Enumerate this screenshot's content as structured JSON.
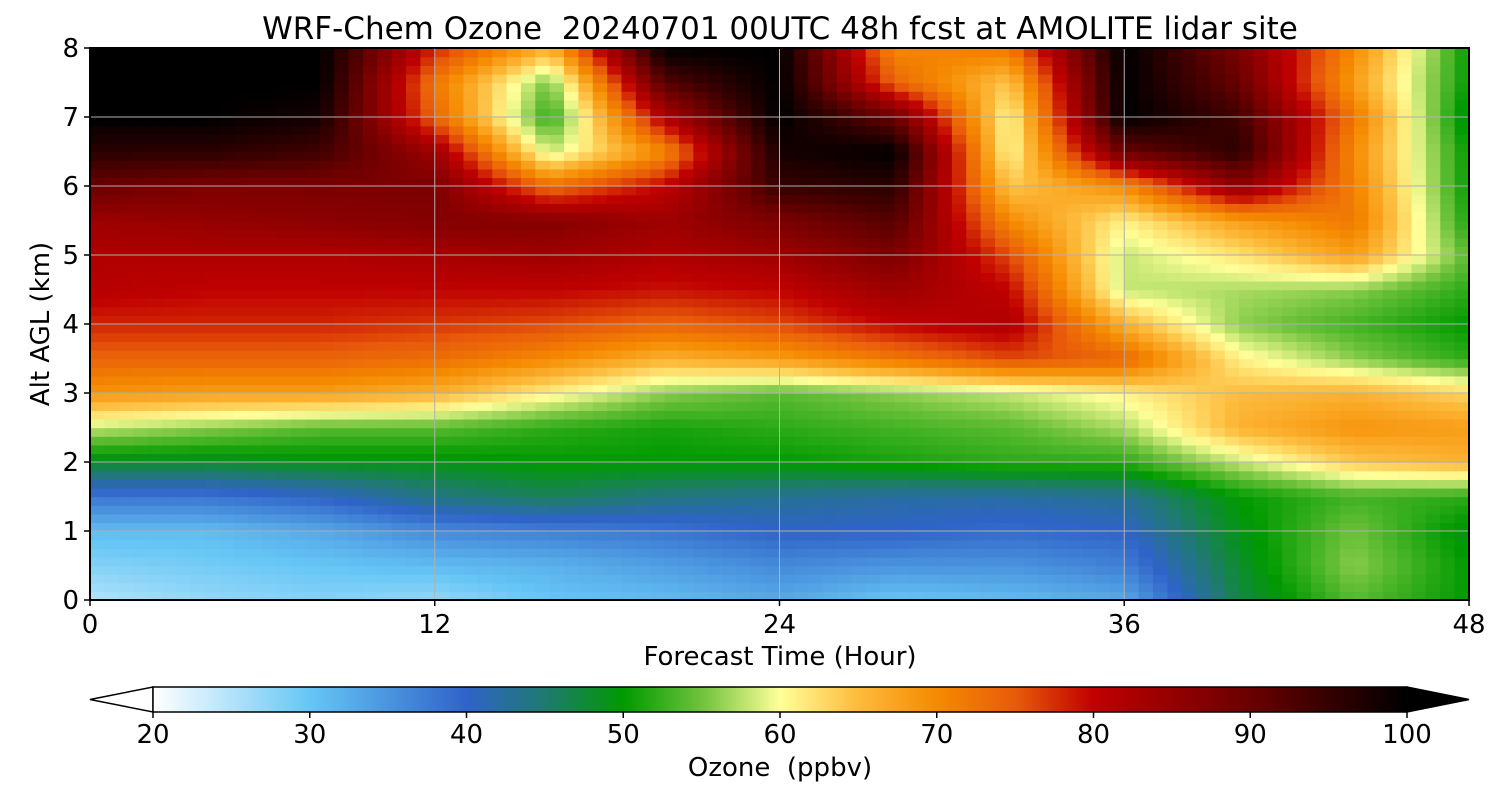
{
  "chart_data": {
    "type": "heatmap",
    "title": "WRF-Chem Ozone  20240701 00UTC 48h fcst at AMOLITE lidar site",
    "xlabel": "Forecast Time (Hour)",
    "ylabel": "Alt AGL (km)",
    "xlim": [
      0,
      48
    ],
    "ylim": [
      0,
      8
    ],
    "xticks": [
      0,
      12,
      24,
      36,
      48
    ],
    "yticks": [
      0,
      1,
      2,
      3,
      4,
      5,
      6,
      7,
      8
    ],
    "grid": true,
    "colorbar": {
      "label": "Ozone  (ppbv)",
      "range": [
        20,
        100
      ],
      "ticks": [
        20,
        30,
        40,
        50,
        60,
        70,
        80,
        90,
        100
      ],
      "extend": "both",
      "stops": [
        {
          "value": 20,
          "color": "#ffffff"
        },
        {
          "value": 30,
          "color": "#66c6f5"
        },
        {
          "value": 40,
          "color": "#2f63c8"
        },
        {
          "value": 45,
          "color": "#1f7a70"
        },
        {
          "value": 50,
          "color": "#009a00"
        },
        {
          "value": 55,
          "color": "#6fc23c"
        },
        {
          "value": 60,
          "color": "#ffff99"
        },
        {
          "value": 65,
          "color": "#fdbb3c"
        },
        {
          "value": 70,
          "color": "#f58a00"
        },
        {
          "value": 75,
          "color": "#e85b0a"
        },
        {
          "value": 80,
          "color": "#c00000"
        },
        {
          "value": 90,
          "color": "#6a0000"
        },
        {
          "value": 100,
          "color": "#000000"
        }
      ]
    },
    "x": [
      0,
      4,
      8,
      12,
      16,
      20,
      24,
      28,
      32,
      36,
      40,
      44,
      48
    ],
    "y": [
      0,
      0.5,
      1,
      1.5,
      2,
      2.5,
      3,
      3.5,
      4,
      4.5,
      5,
      5.5,
      6,
      6.5,
      7,
      7.5,
      8
    ],
    "z": [
      [
        25,
        27,
        28,
        27,
        30,
        31,
        33,
        30,
        31,
        33,
        47,
        54,
        50
      ],
      [
        28,
        29,
        30,
        31,
        32,
        34,
        36,
        35,
        35,
        37,
        48,
        56,
        50
      ],
      [
        31,
        31,
        33,
        36,
        37,
        38,
        40,
        40,
        39,
        40,
        49,
        55,
        49
      ],
      [
        38,
        38,
        40,
        44,
        46,
        44,
        43,
        42,
        42,
        43,
        50,
        53,
        52
      ],
      [
        48,
        48,
        49,
        49,
        50,
        50,
        50,
        51,
        52,
        52,
        58,
        64,
        66
      ],
      [
        58,
        56,
        54,
        54,
        52,
        51,
        52,
        53,
        54,
        57,
        66,
        69,
        68
      ],
      [
        69,
        68,
        68,
        66,
        61,
        56,
        54,
        56,
        58,
        61,
        65,
        66,
        63
      ],
      [
        74,
        74,
        74,
        73,
        70,
        66,
        68,
        72,
        76,
        74,
        61,
        56,
        52
      ],
      [
        78,
        78,
        78,
        77,
        76,
        74,
        76,
        80,
        82,
        66,
        56,
        53,
        50
      ],
      [
        81,
        80,
        80,
        80,
        80,
        79,
        80,
        84,
        80,
        58,
        57,
        56,
        52
      ],
      [
        82,
        82,
        82,
        83,
        84,
        82,
        84,
        88,
        76,
        58,
        62,
        68,
        54
      ],
      [
        84,
        85,
        86,
        87,
        87,
        84,
        88,
        92,
        70,
        61,
        68,
        72,
        51
      ],
      [
        90,
        88,
        88,
        88,
        73,
        80,
        95,
        96,
        64,
        70,
        86,
        71,
        50
      ],
      [
        96,
        96,
        94,
        84,
        58,
        70,
        98,
        100,
        60,
        90,
        96,
        70,
        50
      ],
      [
        100,
        100,
        98,
        74,
        52,
        82,
        100,
        90,
        60,
        100,
        94,
        72,
        48
      ],
      [
        100,
        100,
        100,
        72,
        55,
        92,
        100,
        74,
        64,
        100,
        90,
        68,
        50
      ],
      [
        100,
        100,
        100,
        78,
        66,
        100,
        100,
        70,
        72,
        100,
        88,
        70,
        50
      ]
    ]
  }
}
